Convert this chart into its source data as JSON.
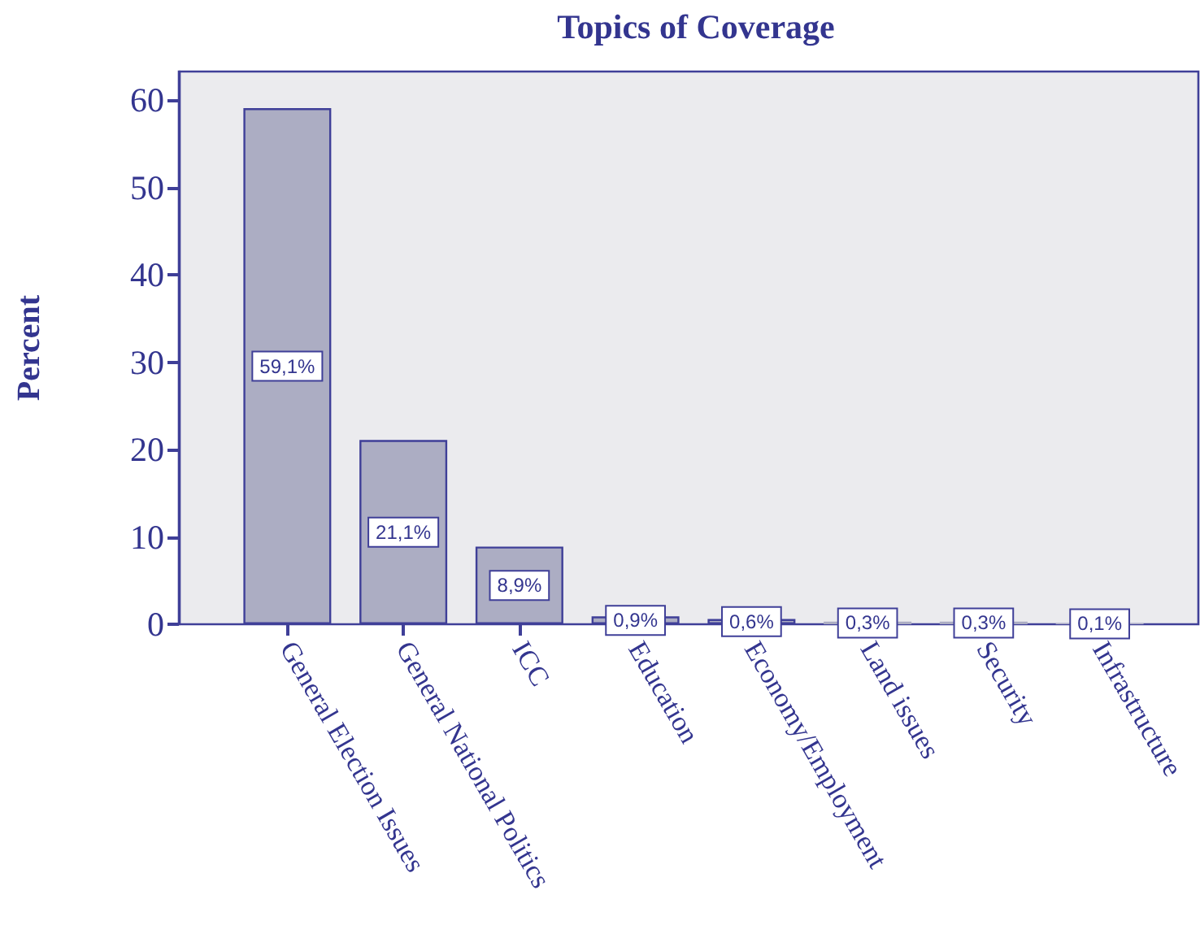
{
  "chart_data": {
    "type": "bar",
    "title": "Topics of Coverage",
    "ylabel": "Percent",
    "categories": [
      "General Election Issues",
      "General National Politics",
      "ICC",
      "Education",
      "Economy/Employment",
      "Land issues",
      "Security",
      "Infrastructure"
    ],
    "values": [
      59.1,
      21.1,
      8.9,
      0.9,
      0.6,
      0.3,
      0.3,
      0.1
    ],
    "value_labels": [
      "59,1%",
      "21,1%",
      "8,9%",
      "0,9%",
      "0,6%",
      "0,3%",
      "0,3%",
      "0,1%"
    ],
    "color": "#acadc3",
    "ylim": [
      0,
      63.3
    ],
    "yticks": [
      0,
      10,
      20,
      30,
      40,
      50,
      60
    ]
  }
}
